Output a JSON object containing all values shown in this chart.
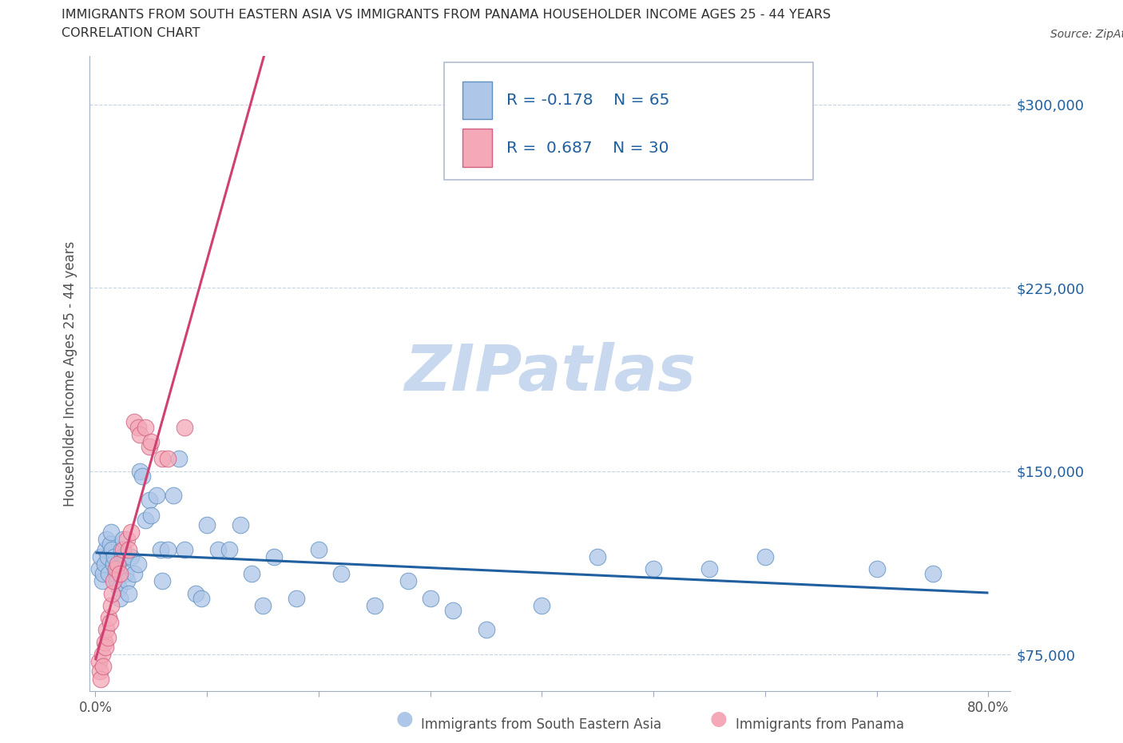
{
  "title_line1": "IMMIGRANTS FROM SOUTH EASTERN ASIA VS IMMIGRANTS FROM PANAMA HOUSEHOLDER INCOME AGES 25 - 44 YEARS",
  "title_line2": "CORRELATION CHART",
  "source_text": "Source: ZipAtlas.com",
  "ylabel": "Householder Income Ages 25 - 44 years",
  "xlim": [
    -0.005,
    0.82
  ],
  "ylim": [
    60000,
    320000
  ],
  "yticks": [
    75000,
    150000,
    225000,
    300000
  ],
  "ytick_labels": [
    "$75,000",
    "$150,000",
    "$225,000",
    "$300,000"
  ],
  "xticks": [
    0.0,
    0.1,
    0.2,
    0.3,
    0.4,
    0.5,
    0.6,
    0.7,
    0.8
  ],
  "xtick_labels": [
    "0.0%",
    "",
    "",
    "",
    "",
    "",
    "",
    "",
    "80.0%"
  ],
  "legend_entries": [
    {
      "label": "Immigrants from South Eastern Asia",
      "color": "#aec6e8",
      "R": "-0.178",
      "N": "65"
    },
    {
      "label": "Immigrants from Panama",
      "color": "#f4a8b8",
      "R": "0.687",
      "N": "30"
    }
  ],
  "watermark": "ZIPatlas",
  "watermark_color": "#c8d8ee",
  "blue_line_color": "#2060a0",
  "pink_line_color": "#d04070",
  "grid_color": "#c8d4e0",
  "background_color": "#ffffff",
  "title_color": "#303030",
  "axis_color": "#505050",
  "blue_scatter_color": "#aec6e8",
  "pink_scatter_color": "#f4a8b8",
  "blue_scatter_edge": "#6090c0",
  "pink_scatter_edge": "#d06080",
  "sea_x": [
    0.003,
    0.005,
    0.006,
    0.007,
    0.008,
    0.009,
    0.01,
    0.011,
    0.012,
    0.013,
    0.014,
    0.015,
    0.016,
    0.017,
    0.018,
    0.019,
    0.02,
    0.021,
    0.022,
    0.023,
    0.024,
    0.025,
    0.026,
    0.027,
    0.028,
    0.03,
    0.032,
    0.035,
    0.038,
    0.04,
    0.042,
    0.045,
    0.048,
    0.05,
    0.055,
    0.058,
    0.06,
    0.065,
    0.07,
    0.075,
    0.08,
    0.09,
    0.095,
    0.1,
    0.11,
    0.12,
    0.13,
    0.14,
    0.15,
    0.16,
    0.18,
    0.2,
    0.22,
    0.25,
    0.28,
    0.3,
    0.32,
    0.35,
    0.4,
    0.45,
    0.5,
    0.55,
    0.6,
    0.7,
    0.75
  ],
  "sea_y": [
    110000,
    115000,
    105000,
    108000,
    112000,
    118000,
    122000,
    115000,
    108000,
    120000,
    125000,
    118000,
    112000,
    115000,
    108000,
    105000,
    110000,
    102000,
    98000,
    118000,
    115000,
    122000,
    115000,
    108000,
    105000,
    100000,
    115000,
    108000,
    112000,
    150000,
    148000,
    130000,
    138000,
    132000,
    140000,
    118000,
    105000,
    118000,
    140000,
    155000,
    118000,
    100000,
    98000,
    128000,
    118000,
    118000,
    128000,
    108000,
    95000,
    115000,
    98000,
    118000,
    108000,
    95000,
    105000,
    98000,
    93000,
    85000,
    95000,
    115000,
    110000,
    110000,
    115000,
    110000,
    108000
  ],
  "pan_x": [
    0.003,
    0.004,
    0.005,
    0.006,
    0.007,
    0.008,
    0.009,
    0.01,
    0.011,
    0.012,
    0.013,
    0.014,
    0.015,
    0.016,
    0.018,
    0.02,
    0.022,
    0.025,
    0.028,
    0.03,
    0.032,
    0.035,
    0.038,
    0.04,
    0.045,
    0.048,
    0.05,
    0.06,
    0.065,
    0.08
  ],
  "pan_y": [
    72000,
    68000,
    65000,
    75000,
    70000,
    80000,
    78000,
    85000,
    82000,
    90000,
    88000,
    95000,
    100000,
    105000,
    110000,
    112000,
    108000,
    118000,
    122000,
    118000,
    125000,
    170000,
    168000,
    165000,
    168000,
    160000,
    162000,
    155000,
    155000,
    168000
  ]
}
